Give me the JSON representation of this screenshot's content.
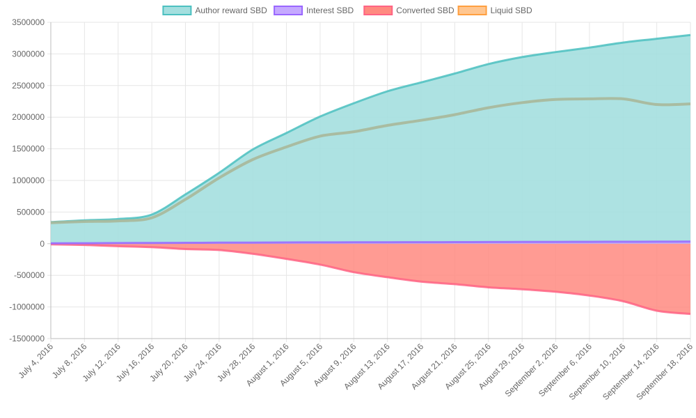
{
  "chart_data": {
    "type": "area",
    "title": "",
    "xlabel": "",
    "ylabel": "",
    "ylim": [
      -1500000,
      3500000
    ],
    "yticks": [
      3500000,
      3000000,
      2500000,
      2000000,
      1500000,
      1000000,
      500000,
      0,
      -500000,
      -1000000,
      -1500000
    ],
    "grid": true,
    "legend_position": "top",
    "x": [
      "2016-07-04",
      "2016-07-08",
      "2016-07-12",
      "2016-07-16",
      "2016-07-20",
      "2016-07-24",
      "2016-07-28",
      "2016-08-01",
      "2016-08-05",
      "2016-08-09",
      "2016-08-13",
      "2016-08-17",
      "2016-08-21",
      "2016-08-25",
      "2016-08-29",
      "2016-09-02",
      "2016-09-06",
      "2016-09-10",
      "2016-09-14",
      "2016-09-18"
    ],
    "x_tick_labels": [
      "July 4, 2016",
      "July 8, 2016",
      "July 12, 2016",
      "July 16, 2016",
      "July 20, 2016",
      "July 24, 2016",
      "July 28, 2016",
      "August 1, 2016",
      "August 5, 2016",
      "August 9, 2016",
      "August 13, 2016",
      "August 17, 2016",
      "August 21, 2016",
      "August 25, 2016",
      "August 29, 2016",
      "September 2, 2016",
      "September 6, 2016",
      "September 10, 2016",
      "September 14, 2016",
      "September 18, 2016"
    ],
    "series": [
      {
        "name": "Author reward SBD",
        "color": "#4bc0c0",
        "fill": "#a4dfdf",
        "values": [
          340000,
          370000,
          390000,
          460000,
          780000,
          1120000,
          1490000,
          1750000,
          2010000,
          2220000,
          2410000,
          2550000,
          2690000,
          2840000,
          2950000,
          3030000,
          3100000,
          3180000,
          3240000,
          3300000
        ]
      },
      {
        "name": "Interest SBD",
        "color": "#9966ff",
        "fill": "#c5a9ff",
        "values": [
          5000,
          8000,
          10000,
          12000,
          14000,
          16000,
          18000,
          20000,
          21000,
          22000,
          23000,
          24000,
          25000,
          26000,
          27000,
          28000,
          30000,
          31000,
          32000,
          33000
        ]
      },
      {
        "name": "Converted SBD",
        "color": "#ff6384",
        "fill": "#ff8a80",
        "values": [
          -10000,
          -20000,
          -40000,
          -55000,
          -85000,
          -100000,
          -160000,
          -240000,
          -330000,
          -450000,
          -530000,
          -600000,
          -640000,
          -690000,
          -720000,
          -760000,
          -820000,
          -910000,
          -1060000,
          -1110000
        ]
      },
      {
        "name": "Liquid SBD",
        "color": "#ff9f40",
        "fill": "#ffc690",
        "values": [
          330000,
          350000,
          360000,
          410000,
          700000,
          1040000,
          1330000,
          1530000,
          1700000,
          1770000,
          1870000,
          1950000,
          2040000,
          2150000,
          2230000,
          2280000,
          2290000,
          2290000,
          2200000,
          2210000
        ]
      }
    ]
  }
}
